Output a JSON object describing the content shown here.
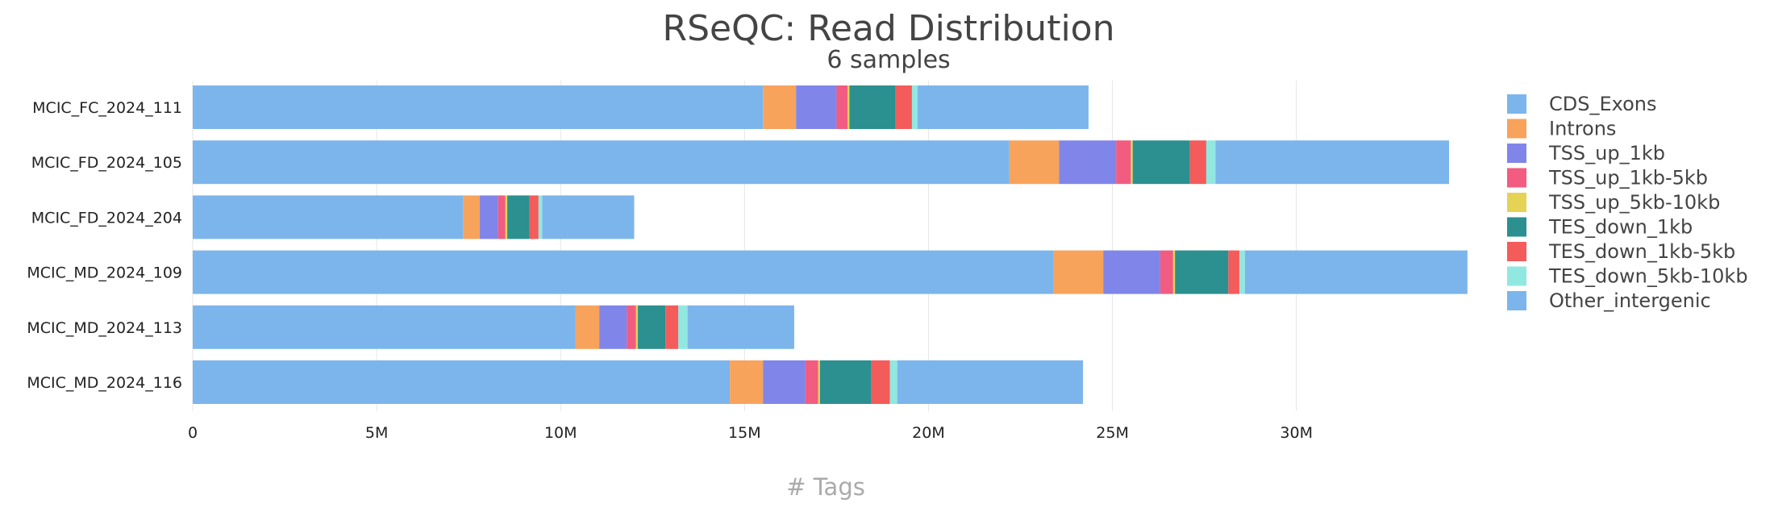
{
  "chart_data": {
    "type": "bar",
    "orientation": "horizontal",
    "stacked": true,
    "title": "RSeQC: Read Distribution",
    "subtitle": "6 samples",
    "xlabel": "# Tags",
    "ylabel": "",
    "xlim": [
      0,
      34500000
    ],
    "x_ticks": [
      0,
      5000000,
      10000000,
      15000000,
      20000000,
      25000000,
      30000000
    ],
    "x_tick_labels": [
      "0",
      "5M",
      "10M",
      "15M",
      "20M",
      "25M",
      "30M"
    ],
    "grid": true,
    "legend_position": "right",
    "categories": [
      "MCIC_FC_2024_111",
      "MCIC_FD_2024_105",
      "MCIC_FD_2024_204",
      "MCIC_MD_2024_109",
      "MCIC_MD_2024_113",
      "MCIC_MD_2024_116"
    ],
    "series": [
      {
        "name": "CDS_Exons",
        "color": "#7cb5ec",
        "values": [
          15500000,
          22200000,
          7350000,
          23400000,
          10400000,
          14600000
        ]
      },
      {
        "name": "Introns",
        "color": "#f7a35c",
        "values": [
          900000,
          1350000,
          450000,
          1350000,
          650000,
          900000
        ]
      },
      {
        "name": "TSS_up_1kb",
        "color": "#8085e9",
        "values": [
          1100000,
          1550000,
          500000,
          1550000,
          750000,
          1150000
        ]
      },
      {
        "name": "TSS_up_1kb-5kb",
        "color": "#f15c80",
        "values": [
          300000,
          400000,
          200000,
          350000,
          250000,
          350000
        ]
      },
      {
        "name": "TSS_up_5kb-10kb",
        "color": "#e4d354",
        "values": [
          50000,
          50000,
          50000,
          50000,
          50000,
          50000
        ]
      },
      {
        "name": "TES_down_1kb",
        "color": "#2b908f",
        "values": [
          1250000,
          1550000,
          600000,
          1450000,
          750000,
          1400000
        ]
      },
      {
        "name": "TES_down_1kb-5kb",
        "color": "#f45b5b",
        "values": [
          450000,
          450000,
          250000,
          300000,
          350000,
          500000
        ]
      },
      {
        "name": "TES_down_5kb-10kb",
        "color": "#91e8e1",
        "values": [
          150000,
          250000,
          100000,
          150000,
          250000,
          200000
        ]
      },
      {
        "name": "Other_intergenic",
        "color": "#7cb5ec",
        "values": [
          4650000,
          6350000,
          2500000,
          6050000,
          2900000,
          5050000
        ]
      }
    ]
  }
}
